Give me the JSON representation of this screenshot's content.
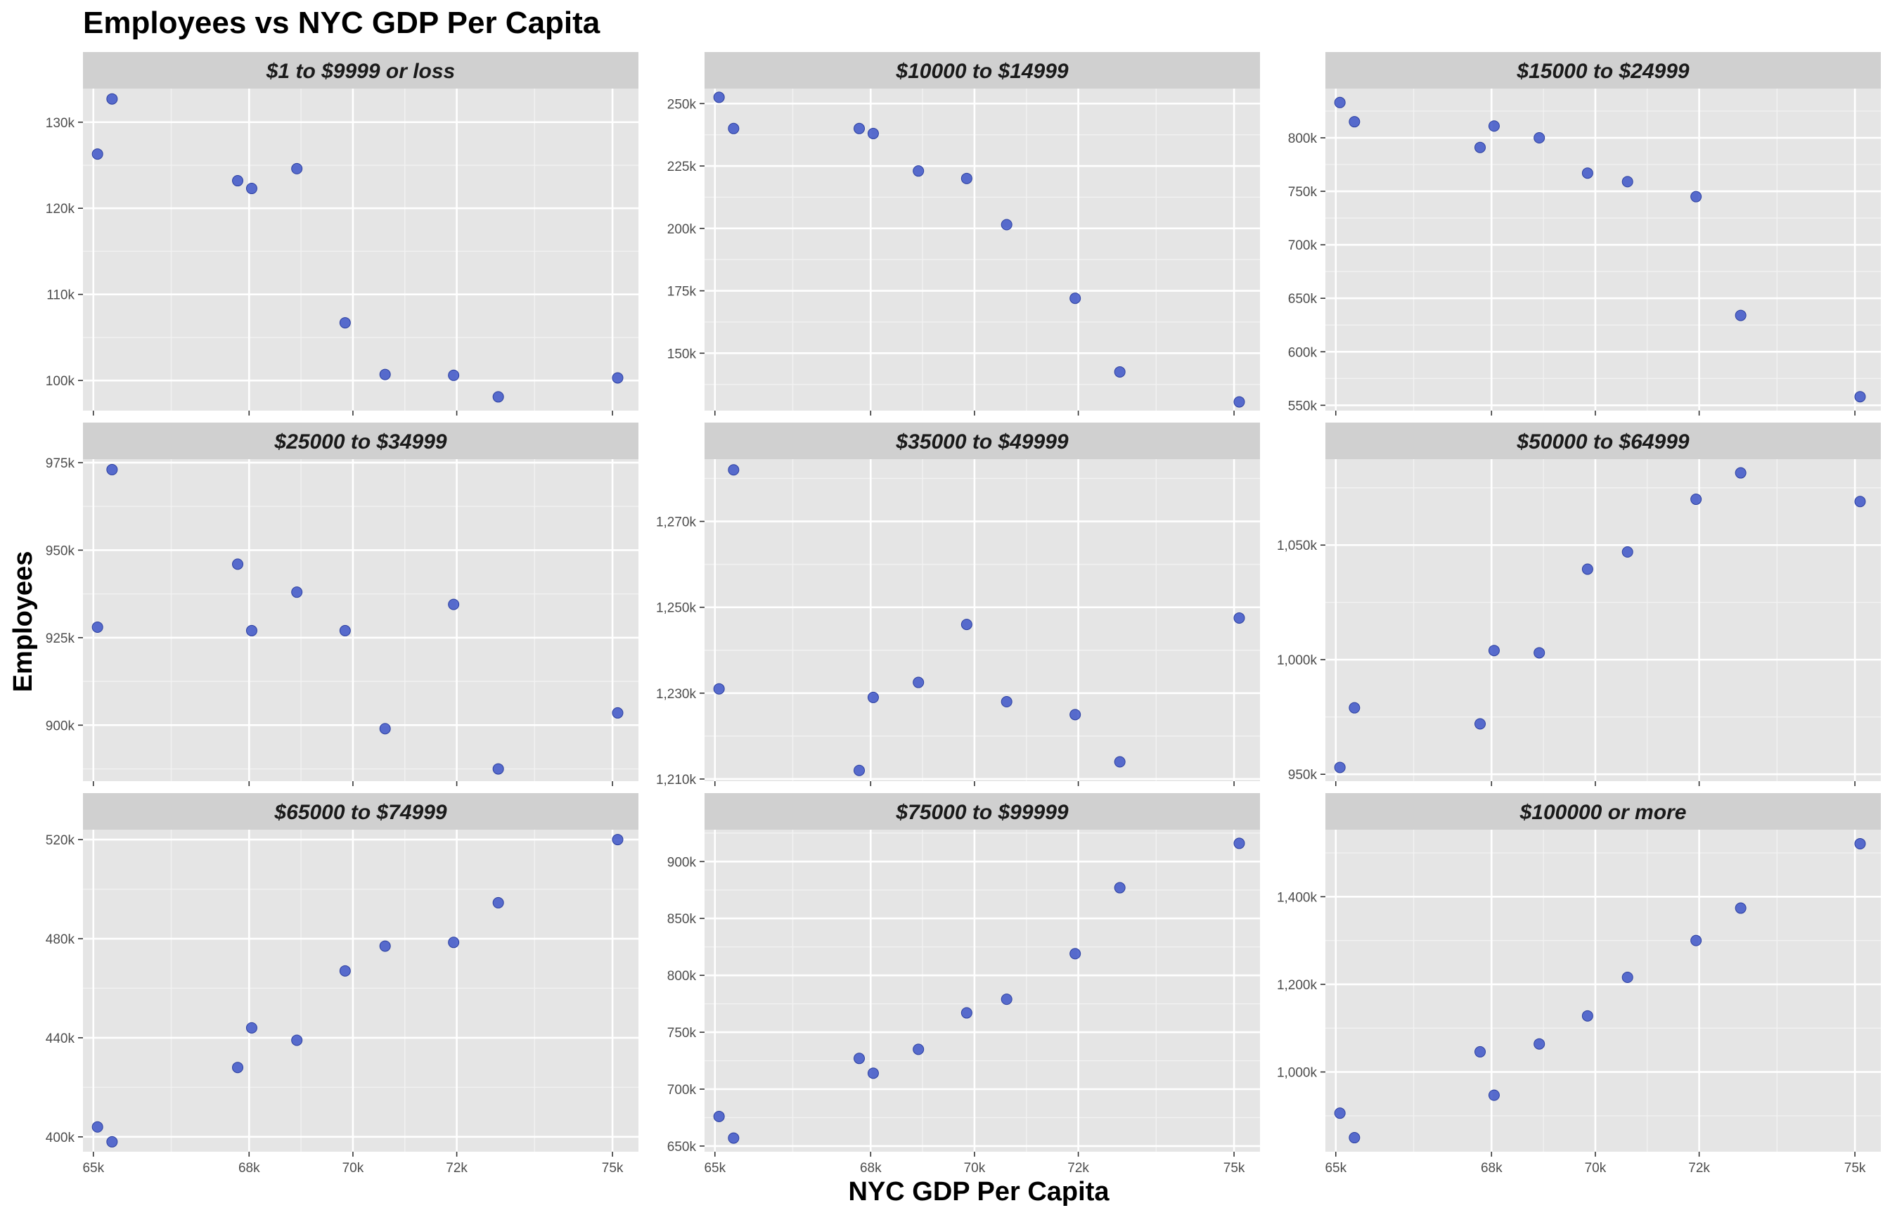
{
  "chart_data": {
    "type": "scatter",
    "title": "Employees vs NYC GDP Per Capita",
    "xlabel": "NYC GDP Per Capita",
    "ylabel": "Employees",
    "point_color": "#3D55C8",
    "panel_bg": "#E5E5E5",
    "strip_bg": "#D0D0D0",
    "grid": true,
    "x": [
      65080,
      65360,
      67780,
      68050,
      68920,
      69850,
      70620,
      71940,
      72800,
      75100
    ],
    "x_ticks": [
      65000,
      68000,
      70000,
      72000,
      75000
    ],
    "x_tick_labels": [
      "65k",
      "68k",
      "70k",
      "72k",
      "75k"
    ],
    "xlim": [
      64800,
      75500
    ],
    "panels": [
      {
        "strip": "$1 to $9999 or loss",
        "y": [
          126300,
          132700,
          123200,
          122300,
          124600,
          106700,
          100700,
          100600,
          98100,
          100300
        ],
        "ylim": [
          96500,
          133900
        ],
        "y_ticks": [
          100000,
          110000,
          120000,
          130000
        ],
        "y_tick_labels": [
          "100k",
          "110k",
          "120k",
          "130k"
        ]
      },
      {
        "strip": "$10000 to $14999",
        "y": [
          252500,
          240000,
          240000,
          238000,
          223000,
          220000,
          201500,
          172000,
          142500,
          130500
        ],
        "ylim": [
          127000,
          256000
        ],
        "y_ticks": [
          150000,
          175000,
          200000,
          225000,
          250000
        ],
        "y_tick_labels": [
          "150k",
          "175k",
          "200k",
          "225k",
          "250k"
        ]
      },
      {
        "strip": "$15000 to $24999",
        "y": [
          833000,
          815000,
          791000,
          811000,
          800000,
          767000,
          759000,
          745000,
          634000,
          558000
        ],
        "ylim": [
          545000,
          846000
        ],
        "y_ticks": [
          550000,
          600000,
          650000,
          700000,
          750000,
          800000
        ],
        "y_tick_labels": [
          "550k",
          "600k",
          "650k",
          "700k",
          "750k",
          "800k"
        ]
      },
      {
        "strip": "$25000 to $34999",
        "y": [
          928000,
          973000,
          946000,
          927000,
          938000,
          927000,
          899000,
          934500,
          887500,
          903500
        ],
        "ylim": [
          884000,
          976000
        ],
        "y_ticks": [
          900000,
          925000,
          950000,
          975000
        ],
        "y_tick_labels": [
          "900k",
          "925k",
          "950k",
          "975k"
        ]
      },
      {
        "strip": "$35000 to $49999",
        "y": [
          1231000,
          1282000,
          1212000,
          1229000,
          1232500,
          1246000,
          1228000,
          1225000,
          1214000,
          1247500
        ],
        "ylim": [
          1209500,
          1284500
        ],
        "y_ticks": [
          1210000,
          1230000,
          1250000,
          1270000
        ],
        "y_tick_labels": [
          "1,210k",
          "1,230k",
          "1,250k",
          "1,270k"
        ]
      },
      {
        "strip": "$50000 to $64999",
        "y": [
          953000,
          979000,
          972000,
          1004000,
          1003000,
          1039500,
          1047000,
          1070000,
          1081500,
          1069000
        ],
        "ylim": [
          947000,
          1087500
        ],
        "y_ticks": [
          950000,
          1000000,
          1050000
        ],
        "y_tick_labels": [
          "950k",
          "1,000k",
          "1,050k"
        ]
      },
      {
        "strip": "$65000 to $74999",
        "y": [
          404000,
          398000,
          428000,
          444000,
          439000,
          467000,
          477000,
          478500,
          494500,
          520000
        ],
        "ylim": [
          394000,
          524000
        ],
        "y_ticks": [
          400000,
          440000,
          480000,
          520000
        ],
        "y_tick_labels": [
          "400k",
          "440k",
          "480k",
          "520k"
        ]
      },
      {
        "strip": "$75000 to $99999",
        "y": [
          676000,
          657000,
          727000,
          714000,
          735000,
          767000,
          779000,
          819000,
          877000,
          916000
        ],
        "ylim": [
          645000,
          928000
        ],
        "y_ticks": [
          650000,
          700000,
          750000,
          800000,
          850000,
          900000
        ],
        "y_tick_labels": [
          "650k",
          "700k",
          "750k",
          "800k",
          "850k",
          "900k"
        ]
      },
      {
        "strip": "$100000 or more",
        "y": [
          906000,
          850000,
          1046000,
          947000,
          1064000,
          1128000,
          1216000,
          1300000,
          1374000,
          1521000
        ],
        "ylim": [
          818000,
          1553000
        ],
        "y_ticks": [
          1000000,
          1200000,
          1400000
        ],
        "y_tick_labels": [
          "1,000k",
          "1,200k",
          "1,400k"
        ]
      }
    ]
  }
}
